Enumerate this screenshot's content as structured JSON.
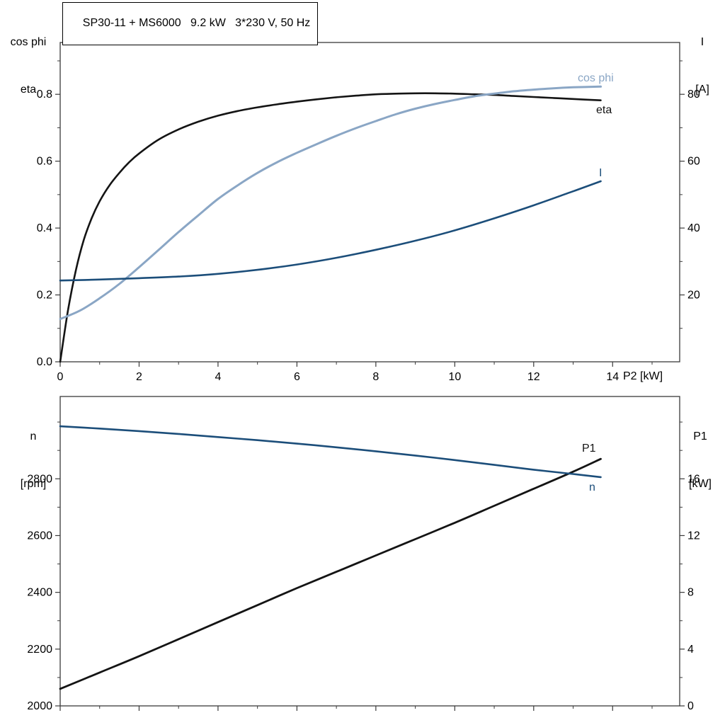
{
  "title_box": "SP30-11 + MS6000   9.2 kW   3*230 V, 50 Hz",
  "axis_labels": {
    "top_left_line1": "cos phi",
    "top_left_line2": "eta",
    "top_right_line1": "I",
    "top_right_line2": "[A]",
    "x_label": "P2 [kW]",
    "bottom_left_line1": "n",
    "bottom_left_line2": "[rpm]",
    "bottom_right_line1": "P1",
    "bottom_right_line2": "[kW]"
  },
  "curve_labels": {
    "cos_phi": "cos phi",
    "eta": "eta",
    "current": "I",
    "p1": "P1",
    "speed": "n"
  },
  "colors": {
    "black_curve": "#141414",
    "light_blue_curve": "#8aa6c5",
    "dark_blue_curve": "#1c4e7a",
    "frame": "#3a3a3a",
    "tick": "#3a3a3a",
    "text": "#000000",
    "background": "#ffffff"
  },
  "chart_data": [
    {
      "type": "line",
      "id": "top",
      "title": "SP30-11 + MS6000   9.2 kW   3*230 V, 50 Hz",
      "xlabel": "P2 [kW]",
      "ylabel_left": "cos phi / eta",
      "ylabel_right": "I [A]",
      "legend_position": "curve-end-labels",
      "grid": false,
      "x_axis": {
        "lim": [
          0,
          15.7
        ],
        "show_labels": true,
        "major": [
          {
            "v": 0,
            "label": "0"
          },
          {
            "v": 2,
            "label": "2"
          },
          {
            "v": 4,
            "label": "4"
          },
          {
            "v": 6,
            "label": "6"
          },
          {
            "v": 8,
            "label": "8"
          },
          {
            "v": 10,
            "label": "10"
          },
          {
            "v": 12,
            "label": "12"
          },
          {
            "v": 14,
            "label": "14"
          }
        ],
        "minor": [
          1,
          3,
          5,
          7,
          9,
          11,
          13,
          15
        ]
      },
      "y_left": {
        "lim": [
          0,
          0.955
        ],
        "major": [
          {
            "v": 0,
            "label": "0.0"
          },
          {
            "v": 0.2,
            "label": "0.2"
          },
          {
            "v": 0.4,
            "label": "0.4"
          },
          {
            "v": 0.6,
            "label": "0.6"
          },
          {
            "v": 0.8,
            "label": "0.8"
          }
        ],
        "minor": [
          0.1,
          0.3,
          0.5,
          0.7,
          0.9
        ]
      },
      "y_right": {
        "lim": [
          0,
          95.5
        ],
        "major": [
          {
            "v": 20,
            "label": "20"
          },
          {
            "v": 40,
            "label": "40"
          },
          {
            "v": 60,
            "label": "60"
          },
          {
            "v": 80,
            "label": "80"
          }
        ],
        "minor": [
          10,
          30,
          50,
          70,
          90
        ]
      },
      "series": [
        {
          "name": "eta",
          "axis": "left",
          "color_key": "black_curve",
          "width": 2.6,
          "points": [
            [
              0,
              0
            ],
            [
              0.2,
              0.155
            ],
            [
              0.4,
              0.275
            ],
            [
              0.6,
              0.365
            ],
            [
              0.8,
              0.43
            ],
            [
              1,
              0.48
            ],
            [
              1.25,
              0.528
            ],
            [
              1.5,
              0.565
            ],
            [
              1.75,
              0.597
            ],
            [
              2,
              0.623
            ],
            [
              2.5,
              0.665
            ],
            [
              3,
              0.695
            ],
            [
              3.5,
              0.718
            ],
            [
              4,
              0.736
            ],
            [
              4.5,
              0.75
            ],
            [
              5,
              0.761
            ],
            [
              5.5,
              0.77
            ],
            [
              6,
              0.778
            ],
            [
              6.5,
              0.785
            ],
            [
              7,
              0.791
            ],
            [
              7.5,
              0.796
            ],
            [
              8,
              0.8
            ],
            [
              8.5,
              0.802
            ],
            [
              9,
              0.803
            ],
            [
              9.5,
              0.803
            ],
            [
              10,
              0.802
            ],
            [
              10.5,
              0.8
            ],
            [
              11,
              0.798
            ],
            [
              11.5,
              0.795
            ],
            [
              12,
              0.792
            ],
            [
              12.5,
              0.789
            ],
            [
              13,
              0.786
            ],
            [
              13.7,
              0.782
            ]
          ]
        },
        {
          "name": "cos phi",
          "axis": "left",
          "color_key": "light_blue_curve",
          "width": 3,
          "points": [
            [
              0,
              0.128
            ],
            [
              0.5,
              0.153
            ],
            [
              1,
              0.19
            ],
            [
              1.5,
              0.233
            ],
            [
              2,
              0.283
            ],
            [
              2.5,
              0.335
            ],
            [
              3,
              0.388
            ],
            [
              3.5,
              0.438
            ],
            [
              4,
              0.487
            ],
            [
              4.5,
              0.528
            ],
            [
              5,
              0.565
            ],
            [
              5.5,
              0.597
            ],
            [
              6,
              0.625
            ],
            [
              6.5,
              0.651
            ],
            [
              7,
              0.676
            ],
            [
              7.5,
              0.699
            ],
            [
              8,
              0.72
            ],
            [
              8.5,
              0.74
            ],
            [
              9,
              0.757
            ],
            [
              9.5,
              0.771
            ],
            [
              10,
              0.783
            ],
            [
              10.5,
              0.794
            ],
            [
              11,
              0.802
            ],
            [
              11.5,
              0.809
            ],
            [
              12,
              0.814
            ],
            [
              12.5,
              0.818
            ],
            [
              13,
              0.821
            ],
            [
              13.7,
              0.823
            ]
          ]
        },
        {
          "name": "I",
          "axis": "right",
          "color_key": "dark_blue_curve",
          "width": 2.6,
          "points": [
            [
              0,
              24.3
            ],
            [
              1,
              24.6
            ],
            [
              2,
              25.0
            ],
            [
              3,
              25.5
            ],
            [
              4,
              26.3
            ],
            [
              5,
              27.5
            ],
            [
              6,
              29.1
            ],
            [
              7,
              31.1
            ],
            [
              8,
              33.5
            ],
            [
              9,
              36.2
            ],
            [
              10,
              39.3
            ],
            [
              11,
              42.9
            ],
            [
              12,
              46.8
            ],
            [
              13,
              51.0
            ],
            [
              13.7,
              54.0
            ]
          ]
        }
      ]
    },
    {
      "type": "line",
      "id": "bottom",
      "title": "",
      "xlabel": "",
      "ylabel_left": "n [rpm]",
      "ylabel_right": "P1 [kW]",
      "legend_position": "curve-end-labels",
      "grid": false,
      "x_axis": {
        "lim": [
          0,
          15.7
        ],
        "show_labels": false,
        "major": [
          {
            "v": 0,
            "label": ""
          },
          {
            "v": 2,
            "label": ""
          },
          {
            "v": 4,
            "label": ""
          },
          {
            "v": 6,
            "label": ""
          },
          {
            "v": 8,
            "label": ""
          },
          {
            "v": 10,
            "label": ""
          },
          {
            "v": 12,
            "label": ""
          },
          {
            "v": 14,
            "label": ""
          }
        ],
        "minor": [
          1,
          3,
          5,
          7,
          9,
          11,
          13,
          15
        ]
      },
      "y_left": {
        "lim": [
          2000,
          3090
        ],
        "major": [
          {
            "v": 2000,
            "label": "2000"
          },
          {
            "v": 2200,
            "label": "2200"
          },
          {
            "v": 2400,
            "label": "2400"
          },
          {
            "v": 2600,
            "label": "2600"
          },
          {
            "v": 2800,
            "label": "2800"
          }
        ],
        "minor": [
          2100,
          2300,
          2500,
          2700,
          2900,
          3000
        ]
      },
      "y_right": {
        "lim": [
          0,
          21.8
        ],
        "major": [
          {
            "v": 0,
            "label": "0"
          },
          {
            "v": 4,
            "label": "4"
          },
          {
            "v": 8,
            "label": "8"
          },
          {
            "v": 12,
            "label": "12"
          },
          {
            "v": 16,
            "label": "16"
          }
        ],
        "minor": [
          2,
          6,
          10,
          14,
          18,
          20
        ]
      },
      "series": [
        {
          "name": "P1",
          "axis": "right",
          "color_key": "black_curve",
          "width": 2.8,
          "points": [
            [
              0,
              1.2
            ],
            [
              1,
              2.35
            ],
            [
              2,
              3.5
            ],
            [
              3,
              4.7
            ],
            [
              4,
              5.9
            ],
            [
              5,
              7.1
            ],
            [
              6,
              8.3
            ],
            [
              7,
              9.45
            ],
            [
              8,
              10.6
            ],
            [
              9,
              11.75
            ],
            [
              10,
              12.9
            ],
            [
              11,
              14.1
            ],
            [
              12,
              15.3
            ],
            [
              13,
              16.5
            ],
            [
              13.7,
              17.4
            ]
          ]
        },
        {
          "name": "n",
          "axis": "left",
          "color_key": "dark_blue_curve",
          "width": 2.6,
          "points": [
            [
              0,
              2985
            ],
            [
              1,
              2977
            ],
            [
              2,
              2968
            ],
            [
              3,
              2958
            ],
            [
              4,
              2947
            ],
            [
              5,
              2936
            ],
            [
              6,
              2924
            ],
            [
              7,
              2911
            ],
            [
              8,
              2897
            ],
            [
              9,
              2882
            ],
            [
              10,
              2866
            ],
            [
              11,
              2849
            ],
            [
              12,
              2832
            ],
            [
              13,
              2817
            ],
            [
              13.7,
              2806
            ]
          ]
        }
      ]
    }
  ]
}
